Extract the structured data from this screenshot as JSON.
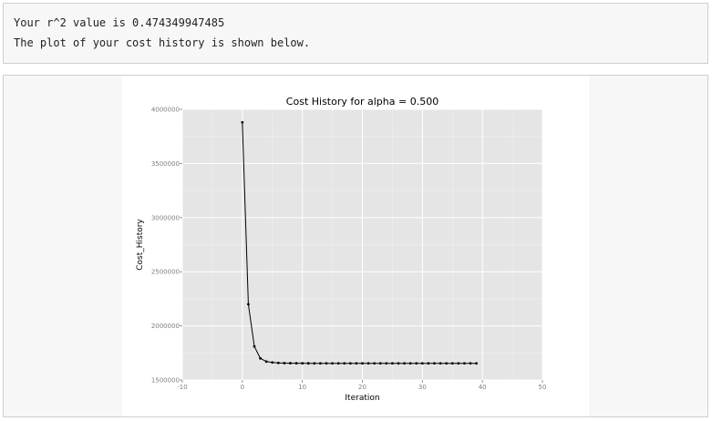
{
  "output": {
    "line1": "Your r^2 value is 0.474349947485",
    "line2": "The plot of your cost history is shown below."
  },
  "chart_data": {
    "type": "line",
    "title": "Cost History for alpha = 0.500",
    "xlabel": "Iteration",
    "ylabel": "Cost_History",
    "xlim": [
      -10,
      50
    ],
    "ylim": [
      1500000,
      4000000
    ],
    "x_ticks": [
      "-10",
      "0",
      "10",
      "20",
      "30",
      "40",
      "50"
    ],
    "y_ticks": [
      "1500000",
      "2000000",
      "2500000",
      "3000000",
      "3500000",
      "4000000"
    ],
    "grid": true,
    "legend": "none",
    "colors": {
      "panel": "#e5e5e5",
      "grid": "#ffffff",
      "line": "#000000"
    },
    "x": [
      0,
      1,
      2,
      3,
      4,
      5,
      6,
      7,
      8,
      9,
      10,
      11,
      12,
      13,
      14,
      15,
      16,
      17,
      18,
      19,
      20,
      21,
      22,
      23,
      24,
      25,
      26,
      27,
      28,
      29,
      30,
      31,
      32,
      33,
      34,
      35,
      36,
      37,
      38,
      39
    ],
    "y": [
      3880000,
      2200000,
      1810000,
      1700000,
      1670000,
      1662000,
      1658000,
      1656000,
      1655000,
      1654500,
      1654200,
      1654000,
      1653900,
      1653800,
      1653800,
      1653700,
      1653700,
      1653700,
      1653700,
      1653700,
      1653700,
      1653700,
      1653700,
      1653700,
      1653700,
      1653700,
      1653700,
      1653700,
      1653700,
      1653700,
      1653700,
      1653700,
      1653700,
      1653700,
      1653700,
      1653700,
      1653700,
      1653700,
      1653700,
      1653700
    ]
  }
}
